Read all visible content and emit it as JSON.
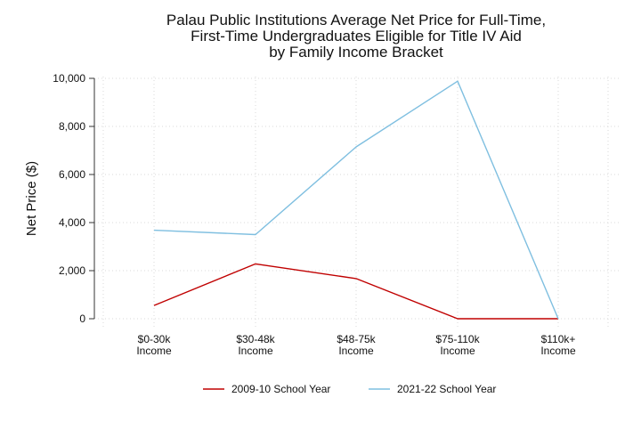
{
  "chart_data": {
    "type": "line",
    "title": [
      "Palau Public Institutions Average Net Price for Full-Time,",
      "First-Time Undergraduates Eligible for Title IV Aid",
      "by Family Income Bracket"
    ],
    "ylabel": "Net Price ($)",
    "xlabel": "",
    "categories": [
      [
        "$0-30k",
        "Income"
      ],
      [
        "$30-48k",
        "Income"
      ],
      [
        "$48-75k",
        "Income"
      ],
      [
        "$75-110k",
        "Income"
      ],
      [
        "$110k+",
        "Income"
      ]
    ],
    "ylim": [
      0,
      10000
    ],
    "yticks": [
      0,
      2000,
      4000,
      6000,
      8000,
      10000
    ],
    "ytick_labels": [
      "0",
      "2,000",
      "4,000",
      "6,000",
      "8,000",
      "10,000"
    ],
    "grid": true,
    "legend_position": "bottom",
    "series": [
      {
        "name": "2009-10 School Year",
        "color": "#c00000",
        "values": [
          550,
          2280,
          1670,
          0,
          0
        ]
      },
      {
        "name": "2021-22 School Year",
        "color": "#7fbfe0",
        "values": [
          3680,
          3500,
          7150,
          9880,
          0
        ]
      }
    ]
  }
}
